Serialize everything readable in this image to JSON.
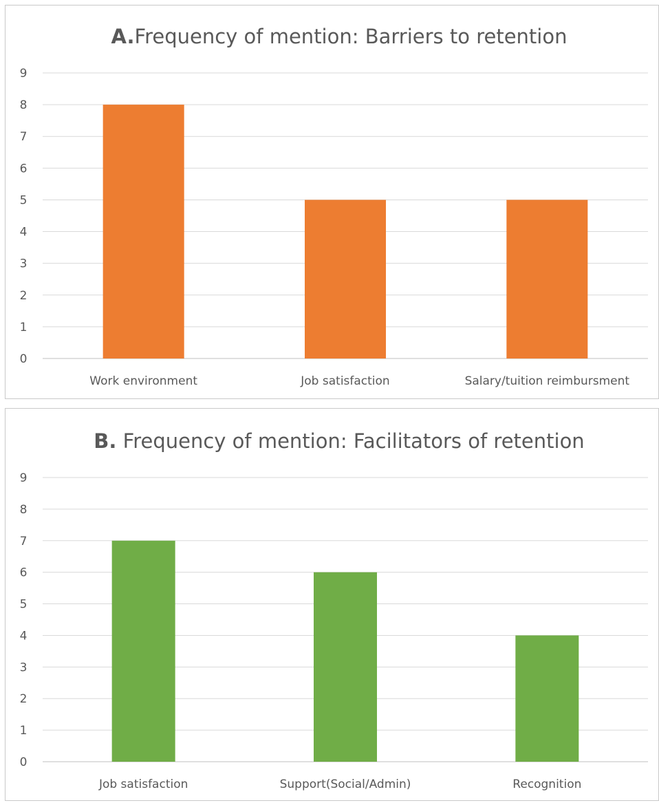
{
  "chart_data": [
    {
      "type": "bar",
      "title_prefix": "A.",
      "title": "Frequency of mention: Barriers to retention",
      "categories": [
        "Work environment",
        "Job satisfaction",
        "Salary/tuition reimbursment"
      ],
      "values": [
        8,
        5,
        5
      ],
      "ylim": [
        0,
        9
      ],
      "yticks": [
        0,
        1,
        2,
        3,
        4,
        5,
        6,
        7,
        8,
        9
      ],
      "bar_color": "#ED7D31",
      "grid": true
    },
    {
      "type": "bar",
      "title_prefix": "B.",
      "title": " Frequency of mention: Facilitators of retention",
      "categories": [
        "Job satisfaction",
        "Support(Social/Admin)",
        "Recognition"
      ],
      "values": [
        7,
        6,
        4
      ],
      "ylim": [
        0,
        9
      ],
      "yticks": [
        0,
        1,
        2,
        3,
        4,
        5,
        6,
        7,
        8,
        9
      ],
      "bar_color": "#70AD47",
      "grid": true
    }
  ]
}
